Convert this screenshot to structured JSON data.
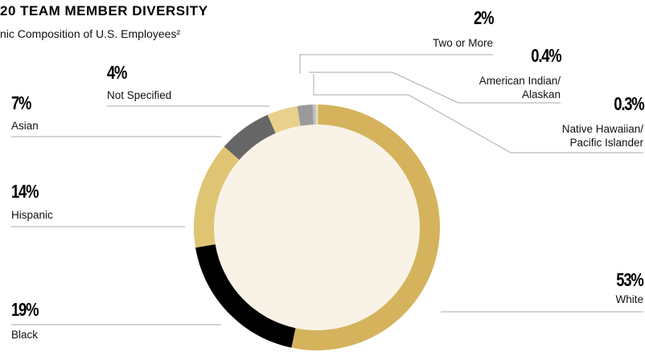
{
  "chart_data": {
    "type": "donut",
    "title": "20 TEAM MEMBER DIVERSITY",
    "subtitle": "nic Composition of U.S. Employees²",
    "categories": [
      "White",
      "Black",
      "Hispanic",
      "Asian",
      "Not Specified",
      "Two or More",
      "American Indian/\nAlaskan",
      "Native Hawaiian/\nPacific Islander"
    ],
    "values": [
      53,
      19,
      14,
      7,
      4,
      2,
      0.4,
      0.3
    ],
    "value_labels": [
      "53%",
      "19%",
      "14%",
      "7%",
      "4%",
      "2%",
      "0.4%",
      "0.3%"
    ],
    "colors": [
      "#d5b35d",
      "#000000",
      "#dfc474",
      "#666666",
      "#e9d08c",
      "#9a9a9a",
      "#bdbdbd",
      "#e6dcc2"
    ]
  }
}
